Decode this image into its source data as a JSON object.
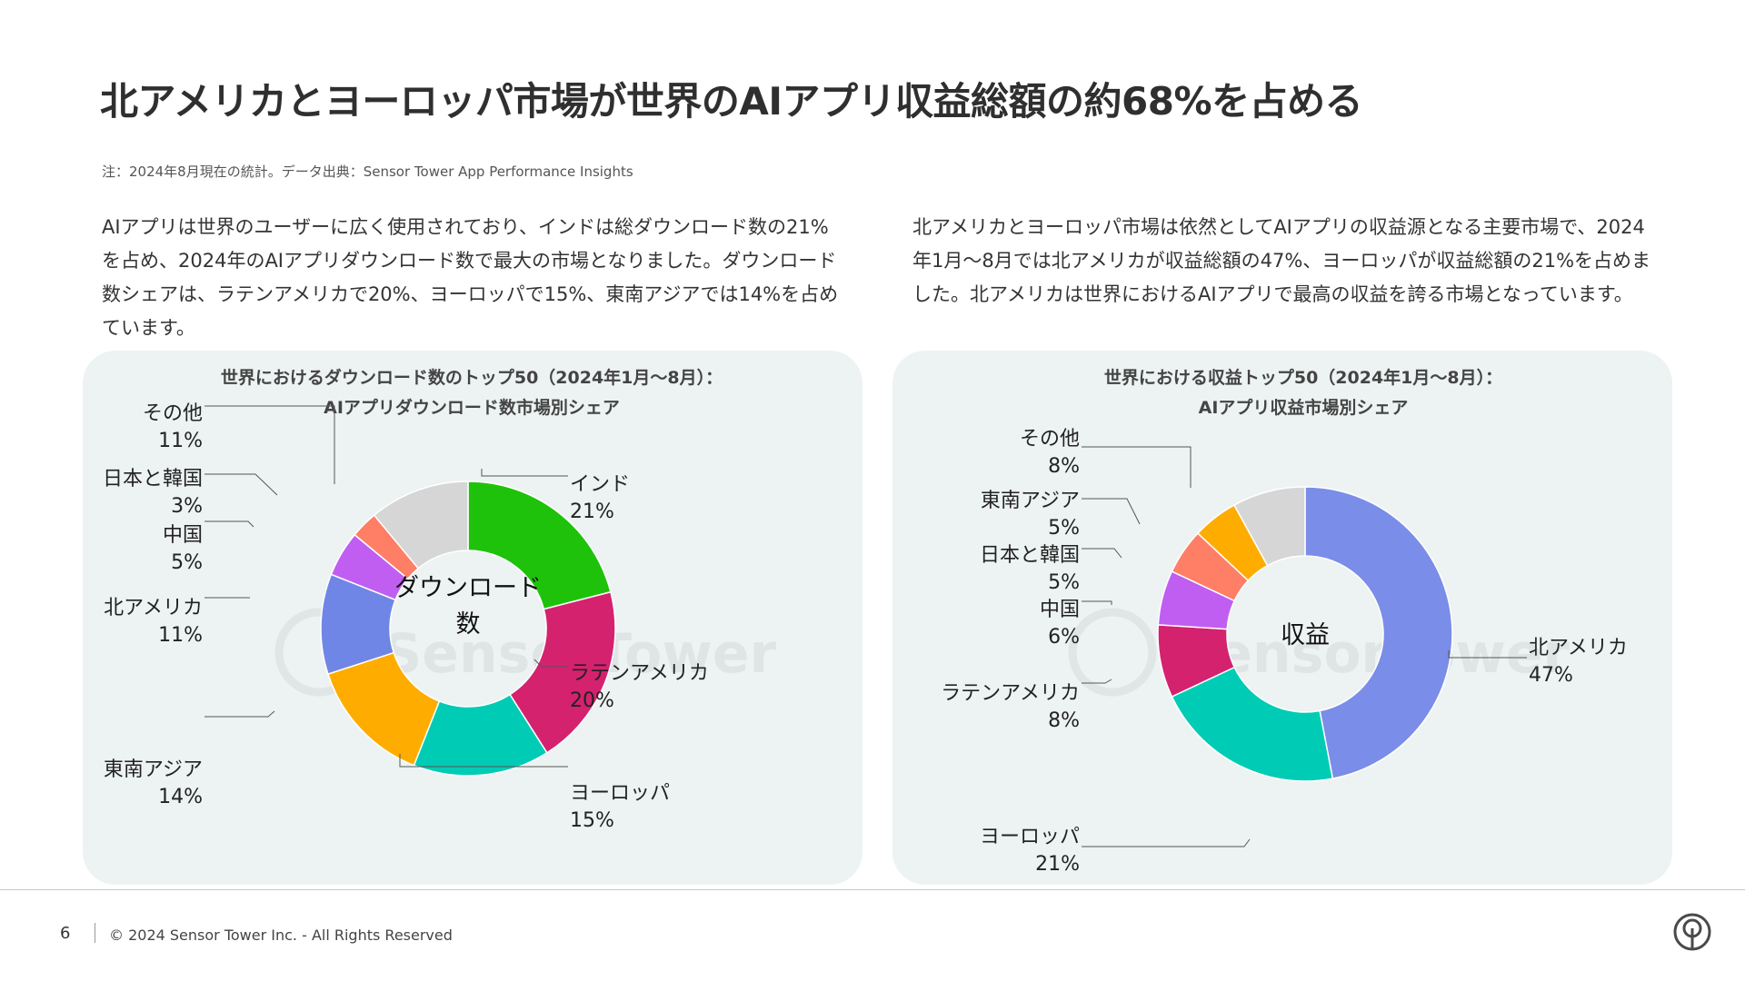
{
  "title": "北アメリカとヨーロッパ市場が世界のAIアプリ収益総額の約68%を占める",
  "note": "注：2024年8月現在の統計。データ出典：Sensor Tower App Performance Insights",
  "paragraph_left": "AIアプリは世界のユーザーに広く使用されており、インドは総ダウンロード数の21%を占め、2024年のAIアプリダウンロード数で最大の市場となりました。ダウンロード数シェアは、ラテンアメリカで20%、ヨーロッパで15%、東南アジアでは14%を占めています。",
  "paragraph_right": "北アメリカとヨーロッパ市場は依然としてAIアプリの収益源となる主要市場で、2024年1月〜8月では北アメリカが収益総額の47%、ヨーロッパが収益総額の21%を占めました。北アメリカは世界におけるAIアプリで最高の収益を誇る市場となっています。",
  "watermark": "SensorTower",
  "chart_data": [
    {
      "type": "pie",
      "variant": "donut",
      "title": [
        "世界におけるダウンロード数のトップ50（2024年1月〜8月）：",
        "AIアプリダウンロード数市場別シェア"
      ],
      "center_label": [
        "ダウンロード",
        "数"
      ],
      "unit": "%",
      "slices": [
        {
          "name": "インド",
          "value": 21,
          "color": "#1fc20b"
        },
        {
          "name": "ラテンアメリカ",
          "value": 20,
          "color": "#d4226f"
        },
        {
          "name": "ヨーロッパ",
          "value": 15,
          "color": "#00ccb5"
        },
        {
          "name": "東南アジア",
          "value": 14,
          "color": "#ffac00"
        },
        {
          "name": "北アメリカ",
          "value": 11,
          "color": "#7086e6"
        },
        {
          "name": "中国",
          "value": 5,
          "color": "#c05ef2"
        },
        {
          "name": "日本と韓国",
          "value": 3,
          "color": "#ff7e66"
        },
        {
          "name": "その他",
          "value": 11,
          "color": "#d6d6d6"
        }
      ]
    },
    {
      "type": "pie",
      "variant": "donut",
      "title": [
        "世界における収益トップ50（2024年1月〜8月）：",
        "AIアプリ収益市場別シェア"
      ],
      "center_label": [
        "収益"
      ],
      "unit": "%",
      "slices": [
        {
          "name": "北アメリカ",
          "value": 47,
          "color": "#7a8de8"
        },
        {
          "name": "ヨーロッパ",
          "value": 21,
          "color": "#00ccb5"
        },
        {
          "name": "ラテンアメリカ",
          "value": 8,
          "color": "#d4226f"
        },
        {
          "name": "中国",
          "value": 6,
          "color": "#c05ef2"
        },
        {
          "name": "日本と韓国",
          "value": 5,
          "color": "#ff7e66"
        },
        {
          "name": "東南アジア",
          "value": 5,
          "color": "#ffac00"
        },
        {
          "name": "その他",
          "value": 8,
          "color": "#d6d6d6"
        }
      ]
    }
  ],
  "footer": {
    "page_number": "6",
    "copyright": "© 2024 Sensor Tower Inc. - All Rights Reserved"
  }
}
